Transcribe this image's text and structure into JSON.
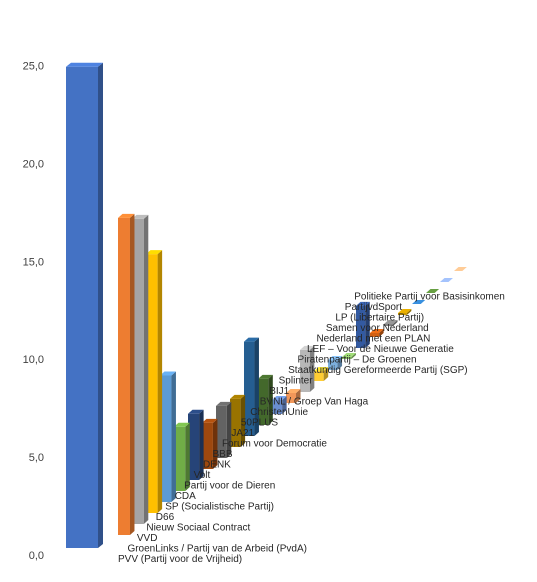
{
  "chart_data": {
    "type": "bar",
    "title": "",
    "xlabel": "",
    "ylabel": "",
    "ylim": [
      0,
      25
    ],
    "y_ticks": [
      "0,0",
      "5,0",
      "10,0",
      "15,0",
      "20,0",
      "25,0"
    ],
    "grid": false,
    "legend": "none",
    "style": "3d-clustered-depth",
    "categories": [
      "PVV (Partij voor de Vrijheid)",
      "GroenLinks / Partij van de Arbeid (PvdA)",
      "VVD",
      "Nieuw Sociaal Contract",
      "D66",
      "SP (Socialistische Partij)",
      "CDA",
      "Partij voor de Dieren",
      "Volt",
      "DENK",
      "BBB",
      "Forum voor Democratie",
      "JA21",
      "50PLUS",
      "ChristenUnie",
      "BVNL / Groep Van Haga",
      "BIJ1",
      "Splinter",
      "Staatkundig Gereformeerde Partij (SGP)",
      "Piratenpartij – De Groenen",
      "LEF – Voor de Nieuwe Generatie",
      "Nederland met een PLAN",
      "Samen voor Nederland",
      "LP (Libertaire Partij)",
      "PartijvdSport",
      "Politieke Partij voor Basisinkomen"
    ],
    "values": [
      23.5,
      15.8,
      15.2,
      12.9,
      6.3,
      3.2,
      3.3,
      2.3,
      2.6,
      2.4,
      4.7,
      2.3,
      0.7,
      0.5,
      2.1,
      0.5,
      0.5,
      0.1,
      2.1,
      0.2,
      0.1,
      0.1,
      0.0,
      0.0,
      0.0,
      0.0
    ],
    "colors": [
      "#4472c4",
      "#ed7d31",
      "#a5a5a5",
      "#ffc000",
      "#5b9bd5",
      "#70ad47",
      "#264478",
      "#9e480e",
      "#636363",
      "#997300",
      "#255e91",
      "#43682b",
      "#698ed0",
      "#f1975a",
      "#b7b7b7",
      "#ffcd33",
      "#7cafdd",
      "#8cc168",
      "#335aa1",
      "#d26012",
      "#848484",
      "#cc9a00",
      "#327dc2",
      "#5a8a39",
      "#8faadc",
      "#f4b183"
    ]
  }
}
